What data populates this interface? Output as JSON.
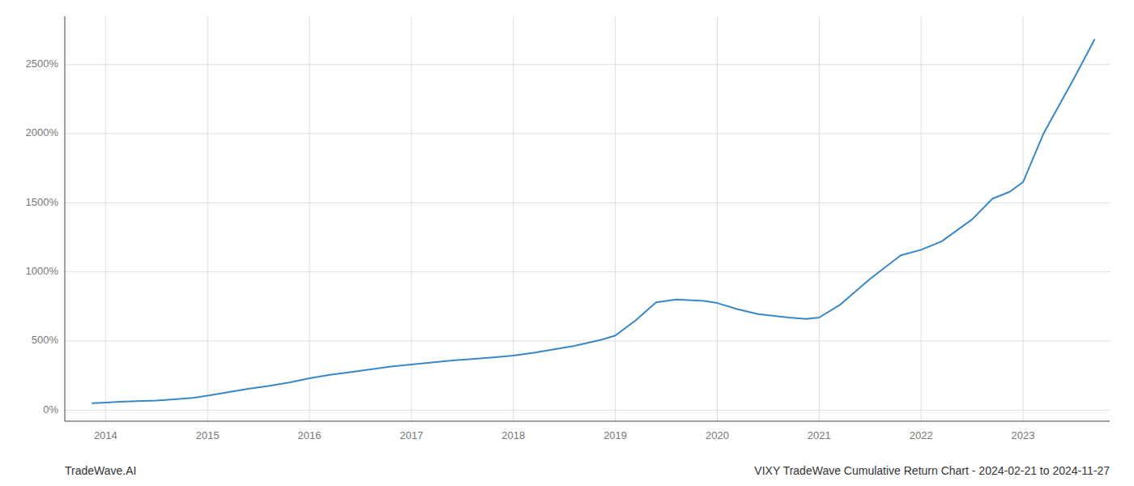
{
  "chart_data": {
    "type": "line",
    "title": "VIXY TradeWave Cumulative Return Chart - 2024-02-21 to 2024-11-27",
    "annotations": [
      "TradeWave.AI"
    ],
    "color": "#3a87c8",
    "grid": true,
    "x": [
      2013.87,
      2014.0,
      2014.15,
      2014.3,
      2014.5,
      2014.7,
      2014.87,
      2015.0,
      2015.2,
      2015.4,
      2015.6,
      2015.8,
      2016.0,
      2016.2,
      2016.4,
      2016.6,
      2016.8,
      2017.0,
      2017.2,
      2017.4,
      2017.6,
      2017.8,
      2018.0,
      2018.2,
      2018.4,
      2018.6,
      2018.87,
      2019.0,
      2019.2,
      2019.4,
      2019.6,
      2019.87,
      2020.0,
      2020.2,
      2020.4,
      2020.7,
      2020.87,
      2021.0,
      2021.2,
      2021.5,
      2021.8,
      2022.0,
      2022.2,
      2022.5,
      2022.7,
      2022.87,
      2023.0,
      2023.2,
      2023.5,
      2023.7
    ],
    "values": [
      50,
      55,
      60,
      65,
      70,
      80,
      90,
      105,
      130,
      155,
      175,
      200,
      230,
      255,
      275,
      295,
      315,
      330,
      345,
      360,
      370,
      382,
      395,
      415,
      440,
      465,
      510,
      540,
      650,
      780,
      800,
      790,
      775,
      730,
      695,
      670,
      660,
      670,
      760,
      950,
      1120,
      1160,
      1220,
      1380,
      1530,
      1580,
      1650,
      2000,
      2400,
      2680
    ],
    "xlim": [
      2013.6,
      2023.85
    ],
    "xticks": [
      2014,
      2015,
      2016,
      2017,
      2018,
      2019,
      2020,
      2021,
      2022,
      2023
    ],
    "ylim": [
      -80,
      2850
    ],
    "yticks": [
      {
        "value": 0,
        "label": "0%"
      },
      {
        "value": 500,
        "label": "500%"
      },
      {
        "value": 1000,
        "label": "1000%"
      },
      {
        "value": 1500,
        "label": "1500%"
      },
      {
        "value": 2000,
        "label": "2000%"
      },
      {
        "value": 2500,
        "label": "2500%"
      }
    ]
  }
}
